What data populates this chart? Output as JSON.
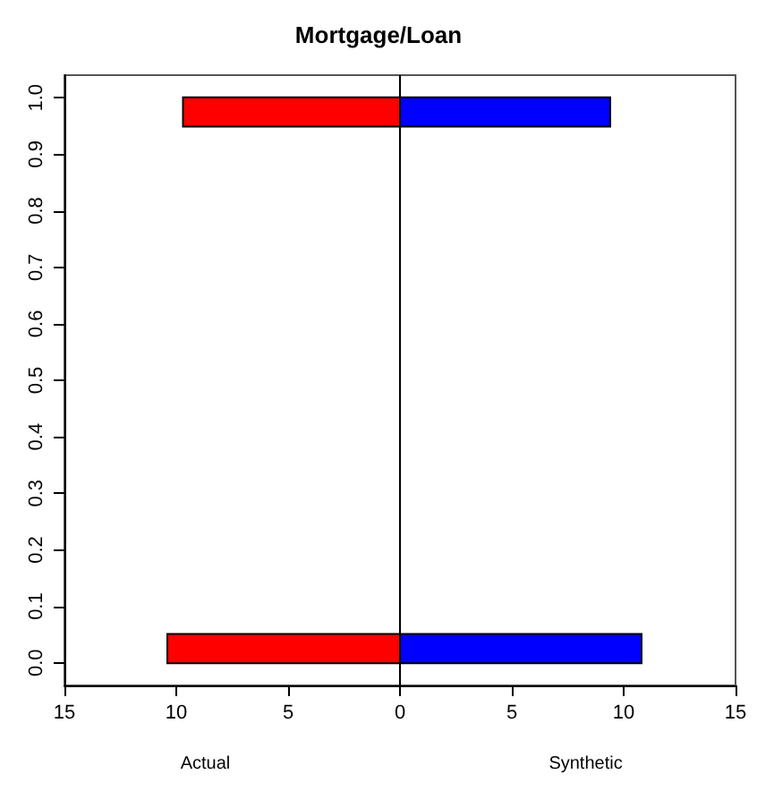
{
  "chart_data": {
    "type": "bar",
    "title": "Mortgage/Loan",
    "orientation": "horizontal",
    "stacked": true,
    "annotations": [
      "Actual",
      "Synthetic"
    ],
    "x": [
      0.025,
      0.975
    ],
    "series": [
      {
        "color": "#ff0000",
        "values": [
          -10.4,
          -9.7
        ]
      },
      {
        "color": "#0000ff",
        "values": [
          10.8,
          9.4
        ]
      }
    ],
    "xlim": [
      -15,
      15
    ],
    "xticks": [
      {
        "value": -15,
        "label": "15"
      },
      {
        "value": -10,
        "label": "10"
      },
      {
        "value": -5,
        "label": "5"
      },
      0,
      5,
      10,
      15
    ],
    "ylim": [
      -0.04,
      1.04
    ],
    "yticks": [
      {
        "value": 0,
        "label": "0.0"
      },
      0.1,
      0.2,
      0.3,
      0.4,
      0.5,
      0.6,
      0.7,
      0.8,
      0.9,
      {
        "value": 1,
        "label": "1.0"
      }
    ],
    "ref_lines": [
      {
        "axis": "x",
        "value": 0
      }
    ],
    "grid": false
  }
}
